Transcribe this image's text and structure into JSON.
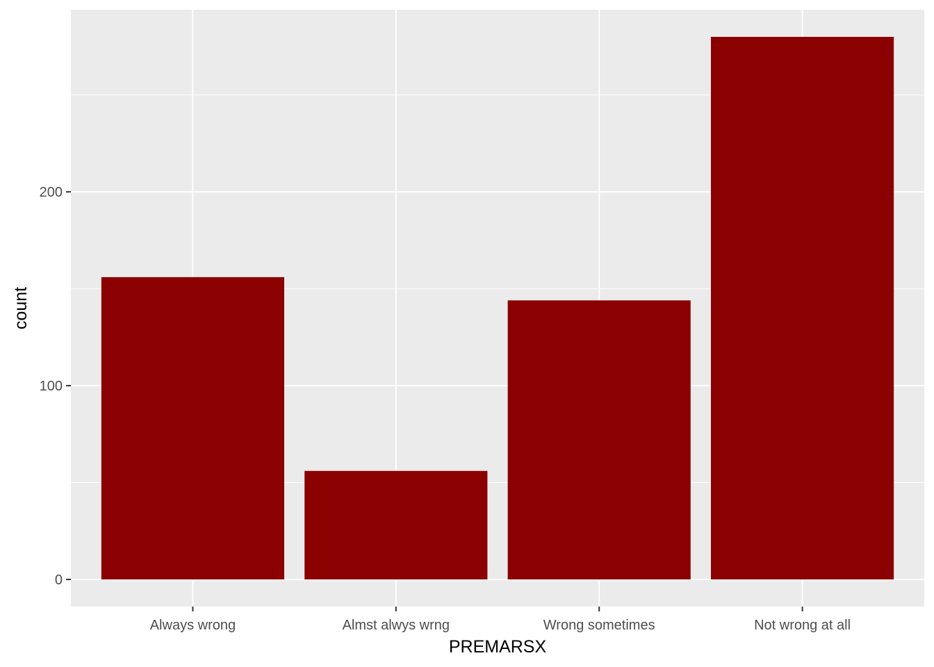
{
  "chart_data": {
    "type": "bar",
    "categories": [
      "Always wrong",
      "Almst alwys wrng",
      "Wrong sometimes",
      "Not wrong at all"
    ],
    "values": [
      156,
      56,
      144,
      280
    ],
    "xlabel": "PREMARSX",
    "ylabel": "count",
    "ylim": [
      -14,
      294
    ],
    "yticks": [
      0,
      100,
      200
    ],
    "yticks_minor": [
      50,
      150,
      250
    ],
    "bar_color": "#8b0000",
    "panel_background": "#ebebeb",
    "grid_color": "#ffffff",
    "grid": true,
    "legend": "none"
  }
}
